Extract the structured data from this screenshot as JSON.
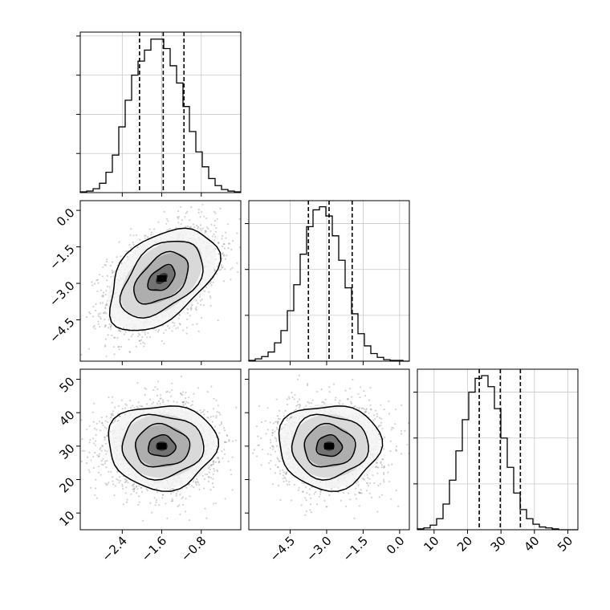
{
  "figure": {
    "type": "corner plot"
  },
  "chart_data": [
    {
      "type": "histogram",
      "position": "row 1, column 1",
      "xlim": [
        -3.25,
        0.0
      ],
      "bin_width": 0.13,
      "counts": [
        1,
        2,
        5,
        12,
        26,
        48,
        84,
        118,
        150,
        168,
        182,
        196,
        196,
        184,
        162,
        140,
        110,
        78,
        52,
        33,
        18,
        9,
        4,
        2,
        1
      ],
      "quantiles": [
        -2.05,
        -1.57,
        -1.15
      ],
      "ylim": [
        0,
        205
      ],
      "tick_labels_x": [
        "−2.4",
        "−1.6",
        "−0.8"
      ],
      "ticks_x": [
        -2.4,
        -1.6,
        -0.8
      ],
      "ticks_y": [
        50,
        100,
        150,
        200
      ],
      "show_x_tick_labels": false,
      "grid": true
    },
    {
      "type": "histogram",
      "position": "row 2, column 2",
      "xlim": [
        -6.2,
        0.4
      ],
      "bin_width": 0.264,
      "counts": [
        1,
        3,
        6,
        12,
        24,
        40,
        66,
        100,
        140,
        176,
        198,
        202,
        190,
        164,
        132,
        96,
        62,
        36,
        20,
        10,
        5,
        2,
        1,
        1,
        0
      ],
      "quantiles": [
        -3.75,
        -2.9,
        -1.95
      ],
      "ylim": [
        0,
        210
      ],
      "tick_labels_x": [
        "−4.5",
        "−3.0",
        "−1.5",
        "0.0"
      ],
      "ticks_x": [
        -4.5,
        -3.0,
        -1.5,
        0.0
      ],
      "ticks_y": [
        60,
        120,
        180
      ],
      "show_x_tick_labels": false,
      "grid": true
    },
    {
      "type": "histogram",
      "position": "row 3, column 3",
      "xlim": [
        5.0,
        53.0
      ],
      "bin_width": 1.92,
      "counts": [
        1,
        2,
        5,
        12,
        28,
        54,
        86,
        120,
        150,
        165,
        168,
        156,
        132,
        100,
        68,
        40,
        22,
        12,
        6,
        3,
        2,
        1,
        0,
        0,
        0
      ],
      "quantiles": [
        23.5,
        29.8,
        35.8
      ],
      "ylim": [
        0,
        175
      ],
      "tick_labels_x": [
        "10",
        "20",
        "30",
        "40",
        "50"
      ],
      "ticks_x": [
        10,
        20,
        30,
        40,
        50
      ],
      "ticks_y": [
        50,
        100,
        150
      ],
      "show_x_tick_labels": true,
      "grid": true
    },
    {
      "type": "scatter",
      "position": "row 2, column 1",
      "xlim": [
        -3.25,
        0.0
      ],
      "ylim": [
        -6.2,
        0.4
      ],
      "center": [
        -1.6,
        -2.8
      ],
      "spread": [
        0.55,
        1.05
      ],
      "correlation": 0.45,
      "contour_levels_sigma": [
        0.5,
        1.0,
        1.5,
        2.0
      ],
      "tick_labels_x": [
        "−2.4",
        "−1.6",
        "−0.8"
      ],
      "ticks_x": [
        -2.4,
        -1.6,
        -0.8
      ],
      "tick_labels_y": [
        "0.0",
        "−1.5",
        "−3.0",
        "−4.5"
      ],
      "ticks_y": [
        0.0,
        -1.5,
        -3.0,
        -4.5
      ],
      "show_x_tick_labels": false,
      "show_y_tick_labels": true
    },
    {
      "type": "scatter",
      "position": "row 3, column 1",
      "xlim": [
        -3.25,
        0.0
      ],
      "ylim": [
        5.0,
        53.0
      ],
      "center": [
        -1.6,
        30.0
      ],
      "spread": [
        0.55,
        6.3
      ],
      "correlation": 0.0,
      "contour_levels_sigma": [
        0.5,
        1.0,
        1.5,
        2.0
      ],
      "tick_labels_x": [
        "−2.4",
        "−1.6",
        "−0.8"
      ],
      "ticks_x": [
        -2.4,
        -1.6,
        -0.8
      ],
      "tick_labels_y": [
        "50",
        "40",
        "30",
        "20",
        "10"
      ],
      "ticks_y": [
        50,
        40,
        30,
        20,
        10
      ],
      "show_x_tick_labels": true,
      "show_y_tick_labels": true
    },
    {
      "type": "scatter",
      "position": "row 3, column 2",
      "xlim": [
        -6.2,
        0.4
      ],
      "ylim": [
        5.0,
        53.0
      ],
      "center": [
        -2.9,
        30.0
      ],
      "spread": [
        1.05,
        6.3
      ],
      "correlation": 0.0,
      "contour_levels_sigma": [
        0.5,
        1.0,
        1.5,
        2.0
      ],
      "tick_labels_x": [
        "−4.5",
        "−3.0",
        "−1.5",
        "0.0"
      ],
      "ticks_x": [
        -4.5,
        -3.0,
        -1.5,
        0.0
      ],
      "show_x_tick_labels": true,
      "show_y_tick_labels": false
    }
  ]
}
